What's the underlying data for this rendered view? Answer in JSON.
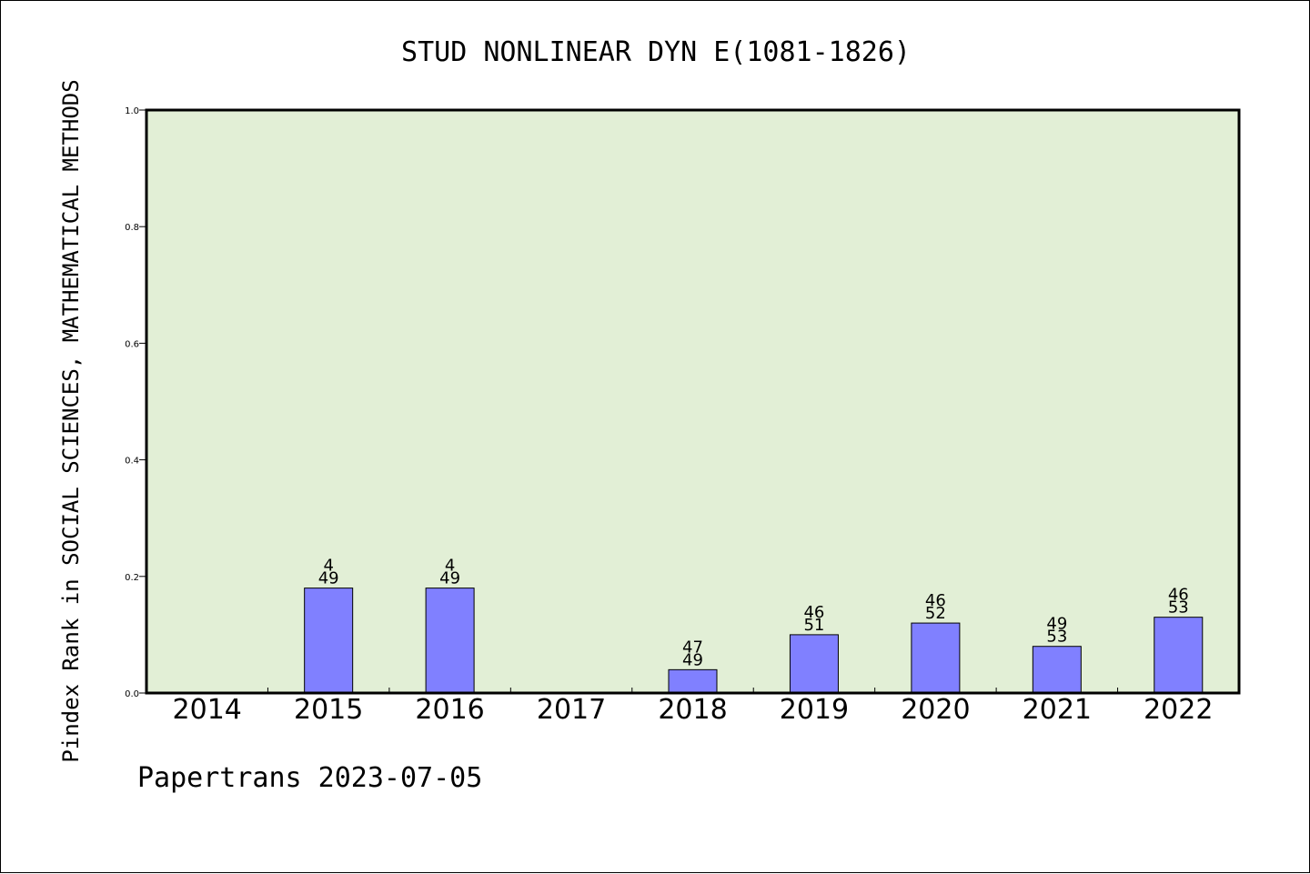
{
  "chart_data": {
    "type": "bar",
    "title": "STUD NONLINEAR DYN E(1081-1826)",
    "xlabel": "",
    "ylabel": "Pindex Rank in SOCIAL SCIENCES, MATHEMATICAL METHODS",
    "ylim": [
      0,
      1.0
    ],
    "yticks": [
      "0.0",
      "0.2",
      "0.4",
      "0.6",
      "0.8",
      "1.0"
    ],
    "grid": false,
    "categories": [
      "2014",
      "2015",
      "2016",
      "2017",
      "2018",
      "2019",
      "2020",
      "2021",
      "2022"
    ],
    "values": [
      null,
      0.18,
      0.18,
      null,
      0.04,
      0.1,
      0.12,
      0.08,
      0.13
    ],
    "labels_top": [
      null,
      "4",
      "4",
      null,
      "47",
      "46",
      "46",
      "49",
      "46"
    ],
    "labels_bottom": [
      null,
      "49",
      "49",
      null,
      "49",
      "51",
      "52",
      "53",
      "53"
    ],
    "colors": {
      "plot_bg": "#e2efd6",
      "bar": "#8080ff"
    }
  },
  "footer": {
    "text": "Papertrans 2023-07-05"
  }
}
